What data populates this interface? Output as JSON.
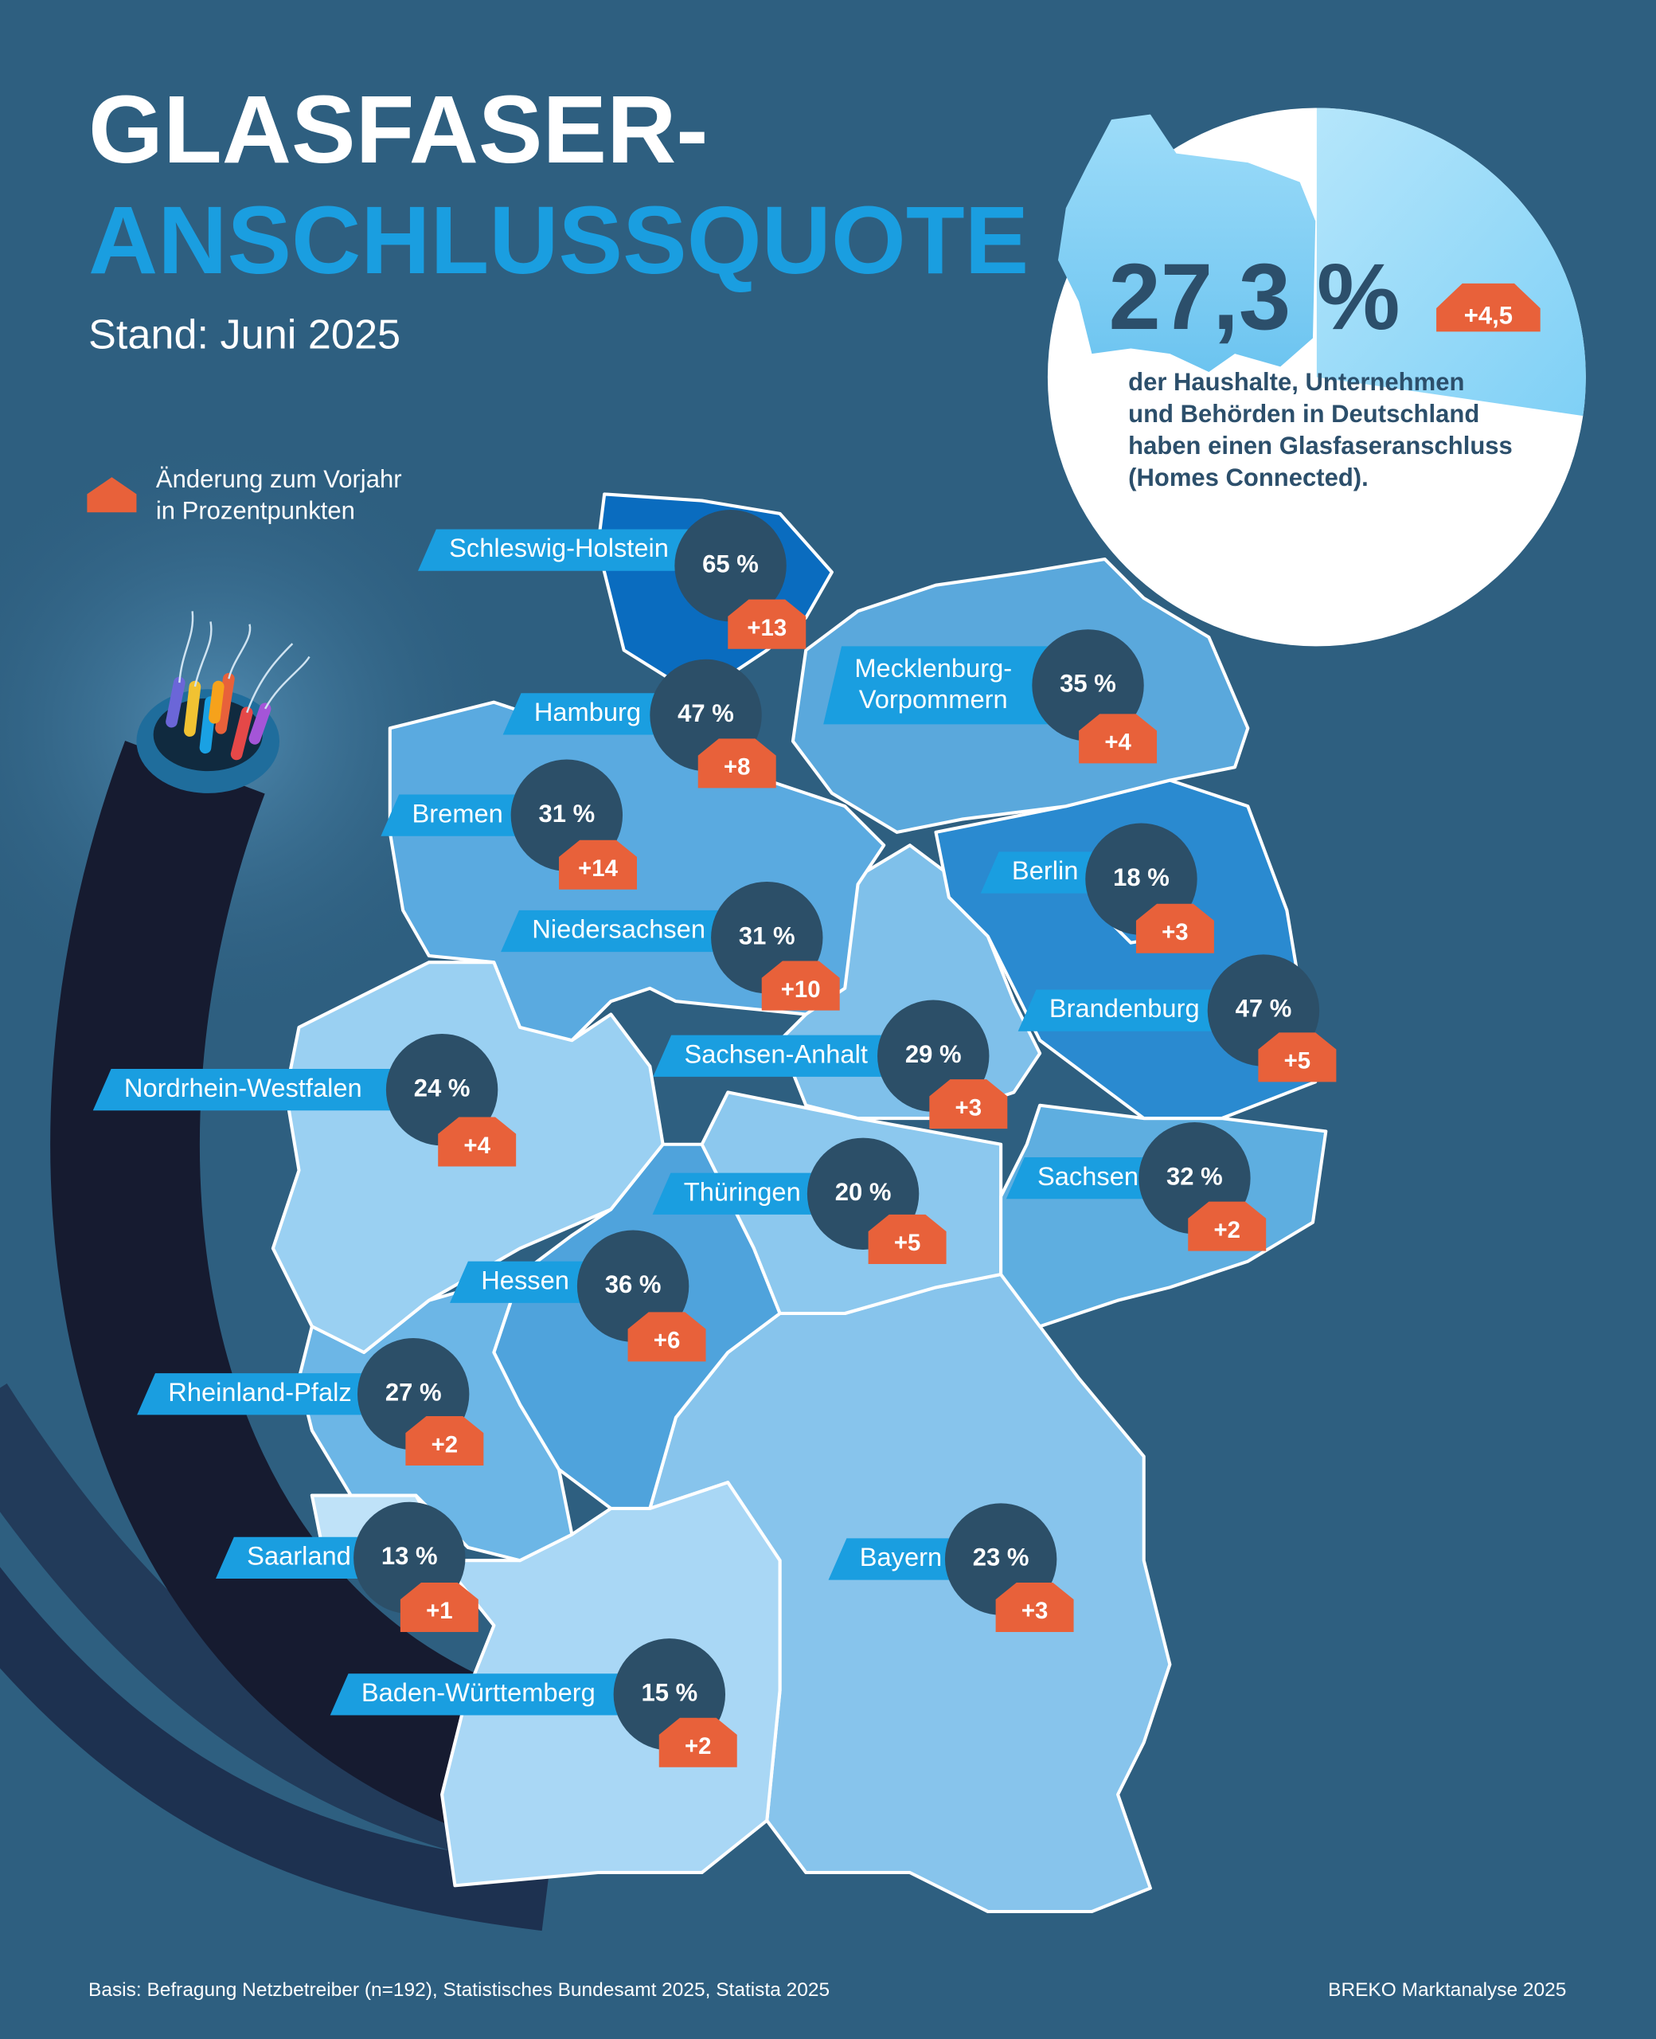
{
  "header": {
    "title_line1": "GLASFASER-",
    "title_line2": "ANSCHLUSSQUOTE",
    "subtitle": "Stand: Juni 2025"
  },
  "legend": {
    "text_line1": "Änderung zum Vorjahr",
    "text_line2": "in Prozentpunkten"
  },
  "national": {
    "share": 27.3,
    "share_label": "27,3 %",
    "change": "+4,5",
    "description": [
      "der Haushalte, Unternehmen",
      "und Behörden in Deutschland",
      "haben einen Glasfaseranschluss",
      "(Homes Connected)."
    ]
  },
  "states": [
    {
      "name": "Schleswig-Holstein",
      "share": "65 %",
      "change": "+13"
    },
    {
      "name": "Hamburg",
      "share": "47 %",
      "change": "+8"
    },
    {
      "name": "Mecklenburg-Vorpommern",
      "share": "35 %",
      "change": "+4"
    },
    {
      "name": "Bremen",
      "share": "31 %",
      "change": "+14"
    },
    {
      "name": "Berlin",
      "share": "18 %",
      "change": "+3"
    },
    {
      "name": "Niedersachsen",
      "share": "31 %",
      "change": "+10"
    },
    {
      "name": "Brandenburg",
      "share": "47 %",
      "change": "+5"
    },
    {
      "name": "Sachsen-Anhalt",
      "share": "29 %",
      "change": "+3"
    },
    {
      "name": "Nordrhein-Westfalen",
      "share": "24 %",
      "change": "+4"
    },
    {
      "name": "Sachsen",
      "share": "32 %",
      "change": "+2"
    },
    {
      "name": "Thüringen",
      "share": "20 %",
      "change": "+5"
    },
    {
      "name": "Hessen",
      "share": "36 %",
      "change": "+6"
    },
    {
      "name": "Rheinland-Pfalz",
      "share": "27 %",
      "change": "+2"
    },
    {
      "name": "Saarland",
      "share": "13 %",
      "change": "+1"
    },
    {
      "name": "Bayern",
      "share": "23 %",
      "change": "+3"
    },
    {
      "name": "Baden-Württemberg",
      "share": "15 %",
      "change": "+2"
    }
  ],
  "footer": {
    "source": "Basis: Befragung Netzbetreiber (n=192), Statistisches Bundesamt 2025, Statista 2025",
    "credit": "BREKO Marktanalyse 2025"
  }
}
